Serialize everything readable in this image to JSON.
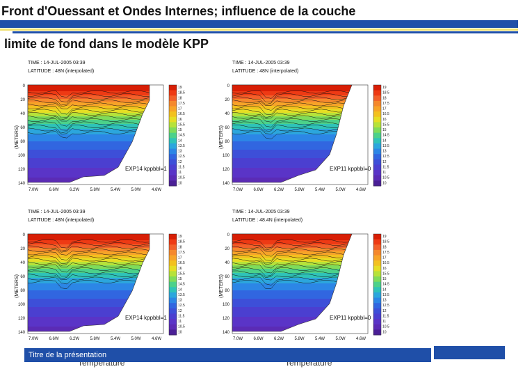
{
  "slide": {
    "title_line1": "Front d'Ouessant et Ondes Internes; influence de la couche",
    "title_line2": "limite de fond dans le modèle KPP",
    "footer_title": "Titre de la présentation",
    "accent_colors": {
      "blue": "#1f4fa8",
      "yellow": "#f0e070"
    }
  },
  "panels": [
    {
      "time": "TIME : 14-JUL-2005 03:39",
      "latitude": "LATITUDE : 48N (interpolated)",
      "ylabel": "(METERS)",
      "label": "EXP14 kppbbl=1",
      "yticks": [
        "0",
        "20",
        "40",
        "60",
        "80",
        "100",
        "120",
        "140"
      ],
      "xticks": [
        "7.0W",
        "6.6W",
        "6.2W",
        "5.8W",
        "5.4W",
        "5.0W",
        "4.6W"
      ],
      "colorbar": [
        "19",
        "18.5",
        "18",
        "17.5",
        "17",
        "16.5",
        "16",
        "15.5",
        "15",
        "14.5",
        "14",
        "13.5",
        "13",
        "12.5",
        "12",
        "11.5",
        "11",
        "10.5",
        "10"
      ]
    },
    {
      "time": "TIME : 14-JUL-2005 03:39",
      "latitude": "LATITUDE : 48N (interpolated)",
      "ylabel": "(METERS)",
      "label": "EXP11 kppbbl=0",
      "yticks": [
        "0",
        "20",
        "40",
        "60",
        "80",
        "100",
        "120",
        "140"
      ],
      "xticks": [
        "7.0W",
        "6.6W",
        "6.2W",
        "5.8W",
        "5.4W",
        "5.0W",
        "4.6W"
      ],
      "colorbar": [
        "19",
        "18.5",
        "18",
        "17.5",
        "17",
        "16.5",
        "16",
        "15.5",
        "15",
        "14.5",
        "14",
        "13.5",
        "13",
        "12.5",
        "12",
        "11.5",
        "11",
        "10.5",
        "10"
      ]
    },
    {
      "time": "TIME : 14-JUL-2005 03:39",
      "latitude": "LATITUDE : 48N (interpolated)",
      "ylabel": "(METERS)",
      "label": "EXP14 kppbbl=1",
      "yticks": [
        "0",
        "20",
        "40",
        "60",
        "80",
        "100",
        "120",
        "140"
      ],
      "xticks": [
        "7.0W",
        "6.6W",
        "6.2W",
        "5.8W",
        "5.4W",
        "5.0W",
        "4.6W"
      ],
      "colorbar": [
        "19",
        "18.5",
        "18",
        "17.5",
        "17",
        "16.5",
        "16",
        "15.5",
        "15",
        "14.5",
        "14",
        "13.5",
        "13",
        "12.5",
        "12",
        "11.5",
        "11",
        "10.5",
        "10"
      ]
    },
    {
      "time": "TIME : 14-JUL-2005 03:39",
      "latitude": "LATITUDE : 48.4N (interpolated)",
      "ylabel": "(METERS)",
      "label": "EXP11 kppbbl=0",
      "yticks": [
        "0",
        "20",
        "40",
        "60",
        "80",
        "100",
        "120",
        "140"
      ],
      "xticks": [
        "7.0W",
        "6.6W",
        "6.2W",
        "5.8W",
        "5.4W",
        "5.0W",
        "4.6W"
      ],
      "colorbar": [
        "19",
        "18.5",
        "18",
        "17.5",
        "17",
        "16.5",
        "16",
        "15.5",
        "15",
        "14.5",
        "14",
        "13.5",
        "13",
        "12.5",
        "12",
        "11.5",
        "11",
        "10.5",
        "10"
      ]
    }
  ],
  "footer_labels": [
    "Température",
    "Température"
  ]
}
